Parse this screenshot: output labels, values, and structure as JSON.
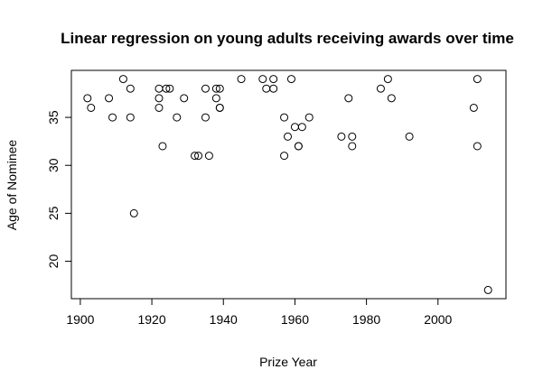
{
  "chart_data": {
    "type": "scatter",
    "title": "Linear regression on young adults receiving awards over time",
    "xlabel": "Prize Year",
    "ylabel": "Age of Nominee",
    "xlim": [
      1897.5,
      2019
    ],
    "ylim": [
      16.1,
      39.9
    ],
    "xticks": [
      1900,
      1920,
      1940,
      1960,
      1980,
      2000
    ],
    "yticks": [
      20,
      25,
      30,
      35
    ],
    "grid": false,
    "legend": "none",
    "points": [
      {
        "x": 1902,
        "y": 37
      },
      {
        "x": 1903,
        "y": 36
      },
      {
        "x": 1908,
        "y": 37
      },
      {
        "x": 1909,
        "y": 35
      },
      {
        "x": 1912,
        "y": 39
      },
      {
        "x": 1914,
        "y": 38
      },
      {
        "x": 1914,
        "y": 35
      },
      {
        "x": 1915,
        "y": 25
      },
      {
        "x": 1922,
        "y": 38
      },
      {
        "x": 1922,
        "y": 37
      },
      {
        "x": 1922,
        "y": 36
      },
      {
        "x": 1923,
        "y": 32
      },
      {
        "x": 1924,
        "y": 38
      },
      {
        "x": 1925,
        "y": 38
      },
      {
        "x": 1927,
        "y": 35
      },
      {
        "x": 1929,
        "y": 37
      },
      {
        "x": 1932,
        "y": 31
      },
      {
        "x": 1933,
        "y": 31
      },
      {
        "x": 1935,
        "y": 38
      },
      {
        "x": 1935,
        "y": 35
      },
      {
        "x": 1936,
        "y": 31
      },
      {
        "x": 1938,
        "y": 38
      },
      {
        "x": 1938,
        "y": 37
      },
      {
        "x": 1939,
        "y": 38
      },
      {
        "x": 1939,
        "y": 36
      },
      {
        "x": 1939,
        "y": 36
      },
      {
        "x": 1945,
        "y": 39
      },
      {
        "x": 1951,
        "y": 39
      },
      {
        "x": 1952,
        "y": 38
      },
      {
        "x": 1954,
        "y": 39
      },
      {
        "x": 1954,
        "y": 38
      },
      {
        "x": 1957,
        "y": 35
      },
      {
        "x": 1957,
        "y": 31
      },
      {
        "x": 1958,
        "y": 33
      },
      {
        "x": 1959,
        "y": 39
      },
      {
        "x": 1960,
        "y": 34
      },
      {
        "x": 1961,
        "y": 32
      },
      {
        "x": 1961,
        "y": 32
      },
      {
        "x": 1962,
        "y": 34
      },
      {
        "x": 1964,
        "y": 35
      },
      {
        "x": 1973,
        "y": 33
      },
      {
        "x": 1975,
        "y": 37
      },
      {
        "x": 1976,
        "y": 33
      },
      {
        "x": 1976,
        "y": 32
      },
      {
        "x": 1984,
        "y": 38
      },
      {
        "x": 1986,
        "y": 39
      },
      {
        "x": 1987,
        "y": 37
      },
      {
        "x": 1992,
        "y": 33
      },
      {
        "x": 2010,
        "y": 36
      },
      {
        "x": 2011,
        "y": 39
      },
      {
        "x": 2011,
        "y": 32
      },
      {
        "x": 2014,
        "y": 17
      }
    ]
  }
}
